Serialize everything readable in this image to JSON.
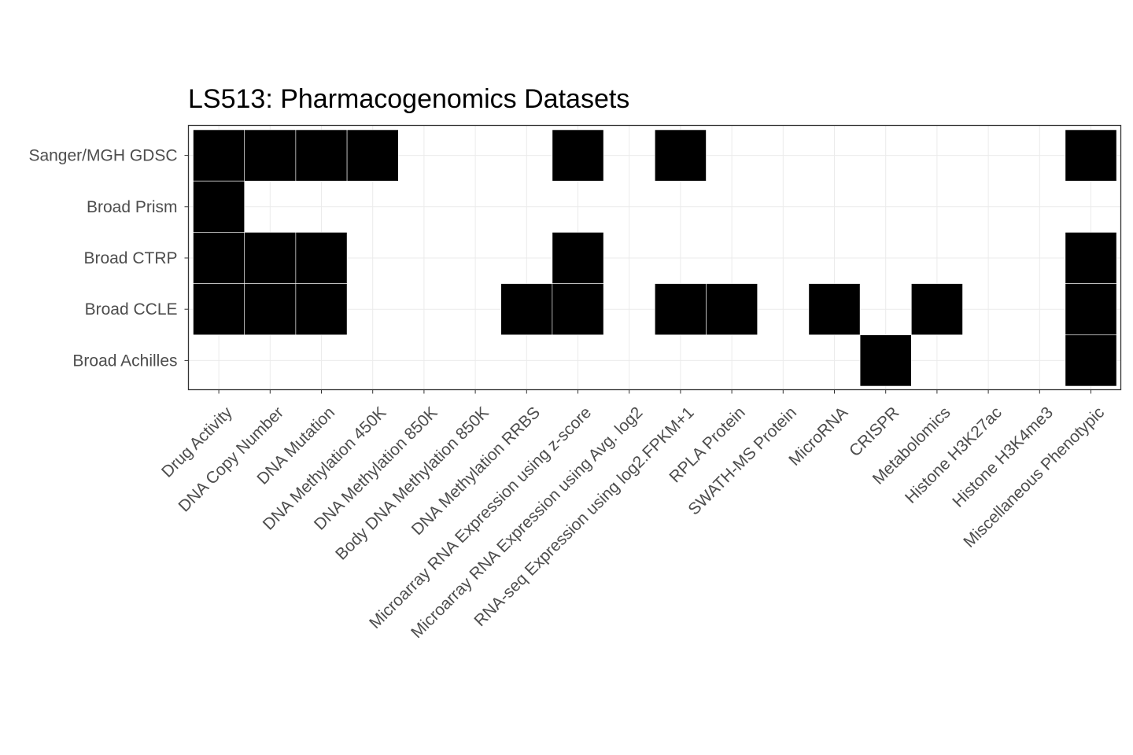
{
  "chart_data": {
    "type": "heatmap",
    "title": "LS513: Pharmacogenomics Datasets",
    "xlabel": "",
    "ylabel": "",
    "x_categories": [
      "Drug Activity",
      "DNA Copy Number",
      "DNA Mutation",
      "DNA Methylation 450K",
      "DNA Methylation 850K",
      "Body DNA Methylation 850K",
      "DNA Methylation RRBS",
      "Microarray RNA Expression using z-score",
      "Microarray RNA Expression using Avg. log2",
      "RNA-seq Expression using log2.FPKM+1",
      "RPLA Protein",
      "SWATH-MS Protein",
      "MicroRNA",
      "CRISPR",
      "Metabolomics",
      "Histone H3K27ac",
      "Histone H3K4me3",
      "Miscellaneous Phenotypic"
    ],
    "y_categories": [
      "Sanger/MGH GDSC",
      "Broad Prism",
      "Broad CTRP",
      "Broad CCLE",
      "Broad Achilles"
    ],
    "values": [
      [
        1,
        1,
        1,
        1,
        0,
        0,
        0,
        1,
        0,
        1,
        0,
        0,
        0,
        0,
        0,
        0,
        0,
        1
      ],
      [
        1,
        0,
        0,
        0,
        0,
        0,
        0,
        0,
        0,
        0,
        0,
        0,
        0,
        0,
        0,
        0,
        0,
        0
      ],
      [
        1,
        1,
        1,
        0,
        0,
        0,
        0,
        1,
        0,
        0,
        0,
        0,
        0,
        0,
        0,
        0,
        0,
        1
      ],
      [
        1,
        1,
        1,
        0,
        0,
        0,
        1,
        1,
        0,
        1,
        1,
        0,
        1,
        0,
        1,
        0,
        0,
        1
      ],
      [
        0,
        0,
        0,
        0,
        0,
        0,
        0,
        0,
        0,
        0,
        0,
        0,
        0,
        1,
        0,
        0,
        0,
        1
      ]
    ],
    "fill_color": "#000000",
    "empty_color": "#ffffff",
    "grid": true,
    "legend": "none"
  }
}
